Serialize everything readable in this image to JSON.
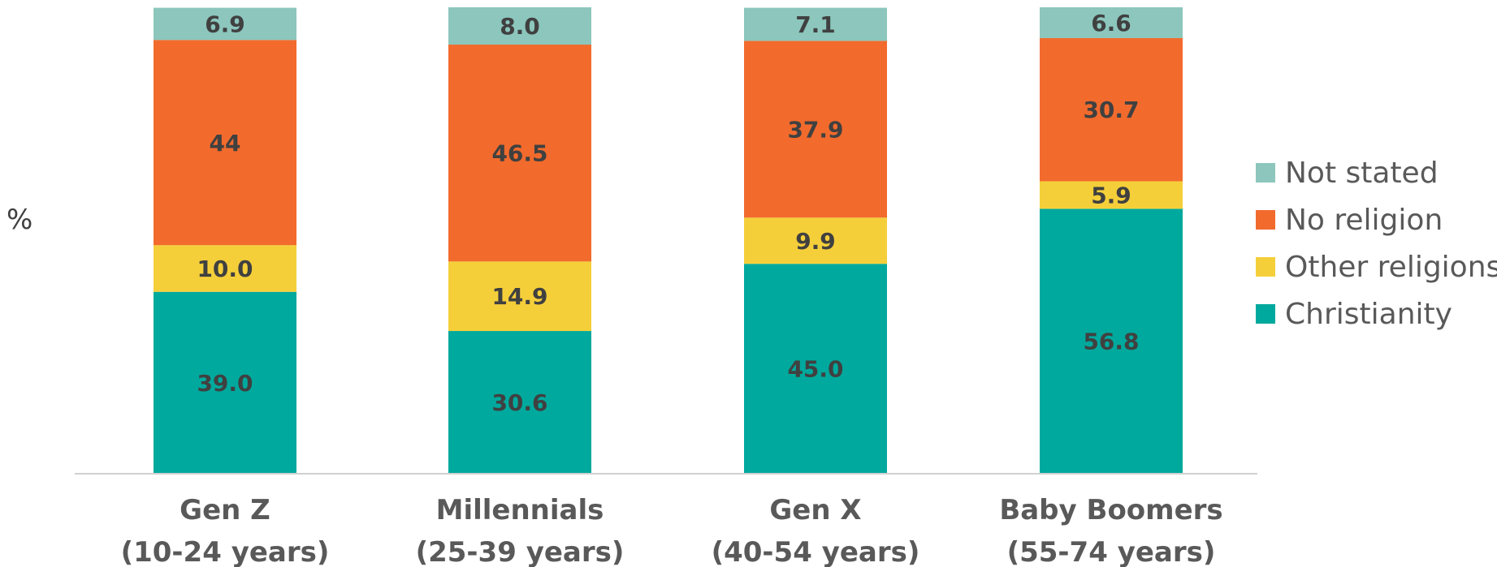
{
  "chart_data": {
    "type": "bar",
    "stacked": true,
    "ylabel": "%",
    "ylim": [
      0,
      100
    ],
    "categories": [
      [
        "Gen Z",
        "(10-24 years)"
      ],
      [
        "Millennials",
        "(25-39 years)"
      ],
      [
        "Gen X",
        "(40-54 years)"
      ],
      [
        "Baby Boomers",
        "(55-74 years)"
      ]
    ],
    "series": [
      {
        "name": "Christianity",
        "color": "#00A99D",
        "values": [
          39.0,
          30.6,
          45.0,
          56.8
        ],
        "labels": [
          "39.0",
          "30.6",
          "45.0",
          "56.8"
        ]
      },
      {
        "name": "Other religions",
        "color": "#F5CF3A",
        "values": [
          10.0,
          14.9,
          9.9,
          5.9
        ],
        "labels": [
          "10.0",
          "14.9",
          "9.9",
          "5.9"
        ]
      },
      {
        "name": "No religion",
        "color": "#F26B2D",
        "values": [
          44,
          46.5,
          37.9,
          30.7
        ],
        "labels": [
          "44",
          "46.5",
          "37.9",
          "30.7"
        ]
      },
      {
        "name": "Not stated",
        "color": "#8CC6BD",
        "values": [
          6.9,
          8.0,
          7.1,
          6.6
        ],
        "labels": [
          "6.9",
          "8.0",
          "7.1",
          "6.6"
        ]
      }
    ],
    "legend": {
      "position": "right",
      "order": [
        "Not stated",
        "No religion",
        "Other religions",
        "Christianity"
      ]
    },
    "grid": false
  }
}
